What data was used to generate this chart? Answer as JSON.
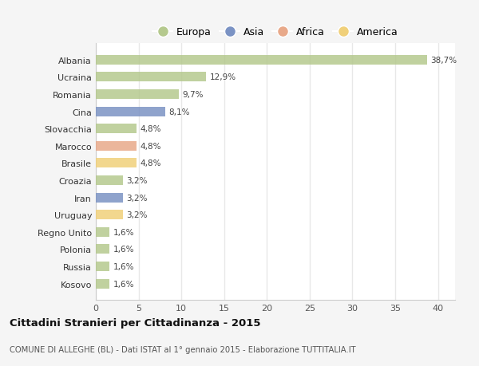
{
  "categories": [
    "Albania",
    "Ucraina",
    "Romania",
    "Cina",
    "Slovacchia",
    "Marocco",
    "Brasile",
    "Croazia",
    "Iran",
    "Uruguay",
    "Regno Unito",
    "Polonia",
    "Russia",
    "Kosovo"
  ],
  "values": [
    38.7,
    12.9,
    9.7,
    8.1,
    4.8,
    4.8,
    4.8,
    3.2,
    3.2,
    3.2,
    1.6,
    1.6,
    1.6,
    1.6
  ],
  "labels": [
    "38,7%",
    "12,9%",
    "9,7%",
    "8,1%",
    "4,8%",
    "4,8%",
    "4,8%",
    "3,2%",
    "3,2%",
    "3,2%",
    "1,6%",
    "1,6%",
    "1,6%",
    "1,6%"
  ],
  "colors": [
    "#b5c98e",
    "#b5c98e",
    "#b5c98e",
    "#7b93c4",
    "#b5c98e",
    "#e8a98a",
    "#f0d07a",
    "#b5c98e",
    "#7b93c4",
    "#f0d07a",
    "#b5c98e",
    "#b5c98e",
    "#b5c98e",
    "#b5c98e"
  ],
  "legend": [
    {
      "label": "Europa",
      "color": "#b5c98e"
    },
    {
      "label": "Asia",
      "color": "#7b93c4"
    },
    {
      "label": "Africa",
      "color": "#e8a98a"
    },
    {
      "label": "America",
      "color": "#f0d07a"
    }
  ],
  "xlim": [
    0,
    42
  ],
  "xticks": [
    0,
    5,
    10,
    15,
    20,
    25,
    30,
    35,
    40
  ],
  "title": "Cittadini Stranieri per Cittadinanza - 2015",
  "subtitle": "COMUNE DI ALLEGHE (BL) - Dati ISTAT al 1° gennaio 2015 - Elaborazione TUTTITALIA.IT",
  "bg_color": "#f5f5f5",
  "plot_bg_color": "#ffffff",
  "grid_color": "#e8e8e8",
  "bar_height": 0.55
}
